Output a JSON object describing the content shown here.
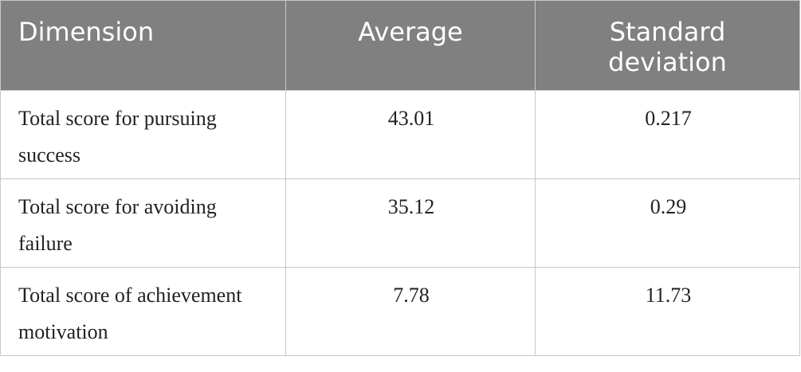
{
  "table": {
    "header": [
      "Dimension",
      "Average",
      "Standard deviation"
    ],
    "rows": [
      [
        "Total score for pursuing success",
        "43.01",
        "0.217"
      ],
      [
        "Total score for avoiding failure",
        "35.12",
        "0.29"
      ],
      [
        "Total score of achievement motivation",
        "7.78",
        "11.73"
      ]
    ]
  }
}
